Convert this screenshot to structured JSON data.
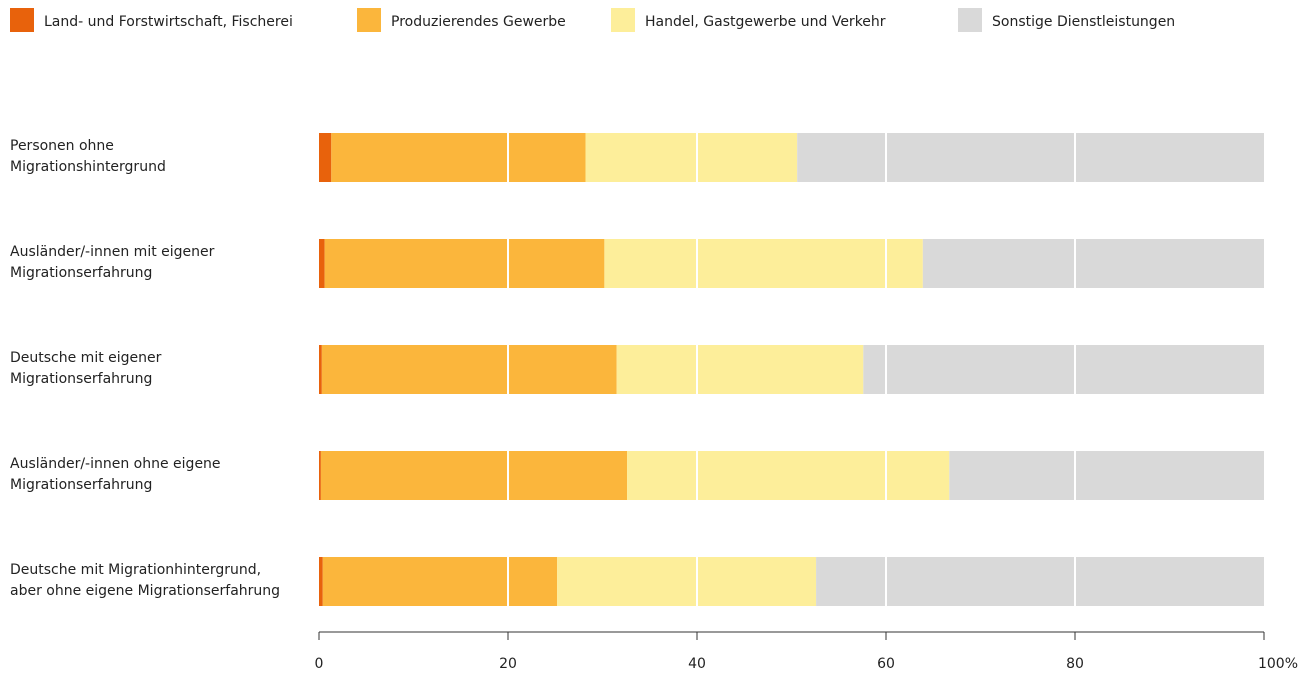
{
  "chart_data": {
    "type": "bar",
    "orientation": "horizontal",
    "stacked": true,
    "xlim": [
      0,
      100
    ],
    "xticks": [
      "0",
      "20",
      "40",
      "60",
      "80",
      "100%"
    ],
    "grid": true,
    "legend_position": "top-left",
    "categories": [
      [
        "Personen ohne",
        "Migrationshintergrund"
      ],
      [
        "Ausländer/-innen mit eigener",
        "Migrationserfahrung"
      ],
      [
        "Deutsche mit eigener",
        "Migrationserfahrung"
      ],
      [
        "Ausländer/-innen ohne eigene",
        "Migrationserfahrung"
      ],
      [
        "Deutsche mit Migrationhintergrund,",
        "aber ohne eigene Migrationserfahrung"
      ]
    ],
    "series": [
      {
        "name": "Land- und Forstwirtschaft, Fischerei",
        "color": "#e8620c",
        "values": [
          1.3,
          0.6,
          0.3,
          0.2,
          0.4
        ]
      },
      {
        "name": "Produzierendes Gewerbe",
        "color": "#fbb63c",
        "values": [
          26.9,
          29.6,
          31.2,
          32.4,
          24.8
        ]
      },
      {
        "name": "Handel, Gastgewerbe und Verkehr",
        "color": "#fdee9a",
        "values": [
          22.4,
          33.7,
          26.1,
          34.1,
          27.4
        ]
      },
      {
        "name": "Sonstige Dienstleistungen",
        "color": "#d9d9d9",
        "values": [
          49.4,
          36.1,
          42.4,
          33.3,
          47.4
        ]
      }
    ]
  }
}
